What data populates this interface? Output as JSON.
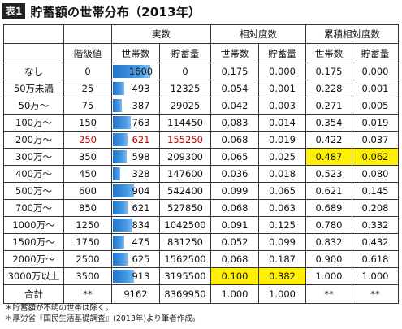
{
  "title": {
    "badge": "表1",
    "text": "貯蓄額の世帯分布（2013年）"
  },
  "headers": {
    "group_actual": "実数",
    "group_relative": "相対度数",
    "group_cumulative": "累積相対度数",
    "class_value": "階級値",
    "households": "世帯数",
    "savings": "貯蓄量"
  },
  "colors": {
    "bar": "#2f80d4",
    "highlight": "#ffef00",
    "red_text": "#cc0000"
  },
  "bar_max": 1600,
  "rows": [
    {
      "label": "なし",
      "class_value": "0",
      "households": 1600,
      "savings": "0",
      "rel_h": "0.175",
      "rel_s": "0.000",
      "cum_h": "0.175",
      "cum_s": "0.000"
    },
    {
      "label": "50万未満",
      "class_value": "25",
      "households": 493,
      "savings": "12325",
      "rel_h": "0.054",
      "rel_s": "0.001",
      "cum_h": "0.228",
      "cum_s": "0.001"
    },
    {
      "label": "50万～",
      "class_value": "75",
      "households": 387,
      "savings": "29025",
      "rel_h": "0.042",
      "rel_s": "0.003",
      "cum_h": "0.271",
      "cum_s": "0.005"
    },
    {
      "label": "100万～",
      "class_value": "150",
      "households": 763,
      "savings": "114450",
      "rel_h": "0.083",
      "rel_s": "0.014",
      "cum_h": "0.354",
      "cum_s": "0.019"
    },
    {
      "label": "200万～",
      "class_value": "250",
      "households": 621,
      "savings": "155250",
      "rel_h": "0.068",
      "rel_s": "0.019",
      "cum_h": "0.422",
      "cum_s": "0.037",
      "red": true
    },
    {
      "label": "300万～",
      "class_value": "350",
      "households": 598,
      "savings": "209300",
      "rel_h": "0.065",
      "rel_s": "0.025",
      "cum_h": "0.487",
      "cum_s": "0.062",
      "hl_cum": true
    },
    {
      "label": "400万～",
      "class_value": "450",
      "households": 328,
      "savings": "147600",
      "rel_h": "0.036",
      "rel_s": "0.018",
      "cum_h": "0.523",
      "cum_s": "0.080"
    },
    {
      "label": "500万～",
      "class_value": "600",
      "households": 904,
      "savings": "542400",
      "rel_h": "0.099",
      "rel_s": "0.065",
      "cum_h": "0.621",
      "cum_s": "0.145"
    },
    {
      "label": "700万～",
      "class_value": "850",
      "households": 621,
      "savings": "527850",
      "rel_h": "0.068",
      "rel_s": "0.063",
      "cum_h": "0.689",
      "cum_s": "0.208"
    },
    {
      "label": "1000万～",
      "class_value": "1250",
      "households": 834,
      "savings": "1042500",
      "rel_h": "0.091",
      "rel_s": "0.125",
      "cum_h": "0.780",
      "cum_s": "0.332"
    },
    {
      "label": "1500万～",
      "class_value": "1750",
      "households": 475,
      "savings": "831250",
      "rel_h": "0.052",
      "rel_s": "0.099",
      "cum_h": "0.832",
      "cum_s": "0.432"
    },
    {
      "label": "2000万～",
      "class_value": "2500",
      "households": 625,
      "savings": "1562500",
      "rel_h": "0.068",
      "rel_s": "0.187",
      "cum_h": "0.900",
      "cum_s": "0.618"
    },
    {
      "label": "3000万以上",
      "class_value": "3500",
      "households": 913,
      "savings": "3195500",
      "rel_h": "0.100",
      "rel_s": "0.382",
      "cum_h": "1.000",
      "cum_s": "1.000",
      "hl_rel": true
    }
  ],
  "total": {
    "label": "合計",
    "class_value": "**",
    "households": "9162",
    "savings": "8369950",
    "rel_h": "1.000",
    "rel_s": "1.000",
    "cum_h": "**",
    "cum_s": "**"
  },
  "footnotes": [
    "＊貯蓄額が不明の世帯は除く。",
    "＊厚労省『国民生活基礎調査』(2013年)より筆者作成。"
  ]
}
